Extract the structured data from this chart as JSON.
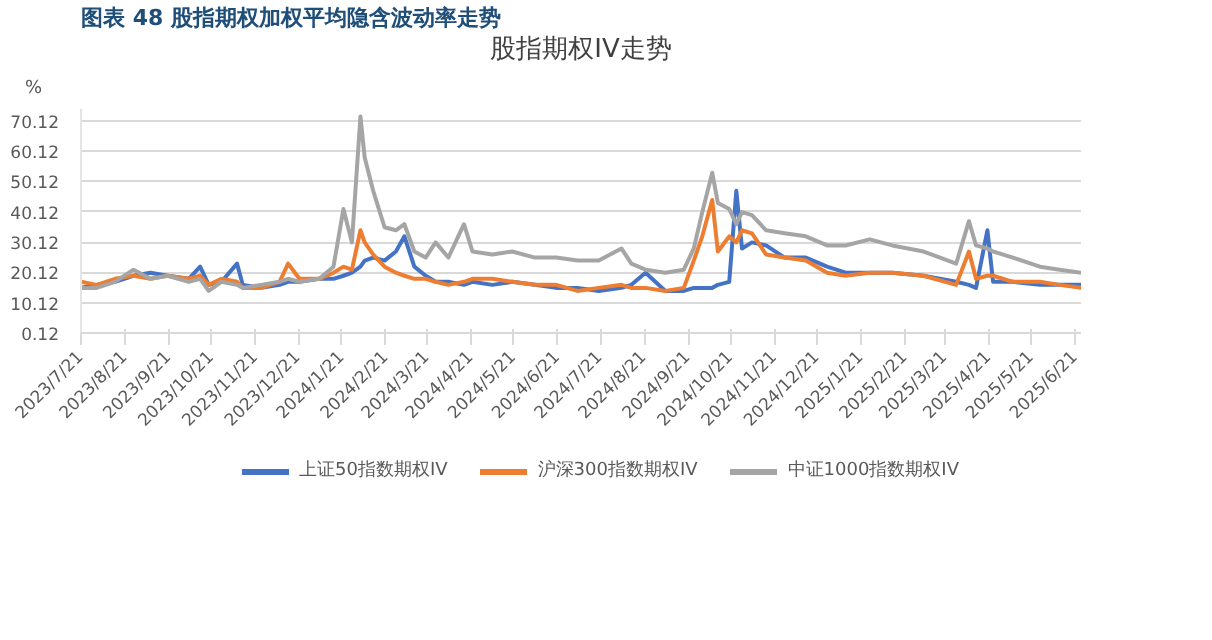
{
  "chart_data": {
    "type": "line",
    "title": "图表 48  股指期权加权平均隐含波动率走势",
    "subtitle": "股指期权IV走势",
    "ylabel": "%",
    "x": [
      "2023-07-21",
      "2023-08-01",
      "2023-08-14",
      "2023-08-27",
      "2023-09-08",
      "2023-09-20",
      "2023-10-05",
      "2023-10-13",
      "2023-10-19",
      "2023-10-28",
      "2023-11-08",
      "2023-11-12",
      "2023-11-25",
      "2023-12-08",
      "2023-12-14",
      "2023-12-22",
      "2024-01-05",
      "2024-01-15",
      "2024-01-22",
      "2024-01-28",
      "2024-02-03",
      "2024-02-06",
      "2024-02-12",
      "2024-02-20",
      "2024-02-28",
      "2024-03-05",
      "2024-03-12",
      "2024-03-20",
      "2024-03-27",
      "2024-04-05",
      "2024-04-16",
      "2024-04-22",
      "2024-05-06",
      "2024-05-20",
      "2024-06-05",
      "2024-06-20",
      "2024-07-05",
      "2024-07-20",
      "2024-08-05",
      "2024-08-12",
      "2024-08-22",
      "2024-09-05",
      "2024-09-18",
      "2024-09-25",
      "2024-10-01",
      "2024-10-08",
      "2024-10-12",
      "2024-10-20",
      "2024-10-25",
      "2024-10-29",
      "2024-11-05",
      "2024-11-15",
      "2024-11-28",
      "2024-12-13",
      "2024-12-28",
      "2025-01-10",
      "2025-01-27",
      "2025-02-12",
      "2025-03-06",
      "2025-03-29",
      "2025-04-07",
      "2025-04-12",
      "2025-04-20",
      "2025-04-24",
      "2025-05-08",
      "2025-05-27",
      "2025-06-10",
      "2025-06-25"
    ],
    "series": [
      {
        "name": "上证50指数期权IV",
        "color": "#4472c4",
        "values": [
          15,
          16,
          17,
          19,
          20,
          19,
          18,
          22,
          16,
          17,
          23,
          16,
          15,
          16,
          17,
          17,
          18,
          18,
          19,
          20,
          22,
          24,
          25,
          24,
          27,
          32,
          22,
          19,
          17,
          17,
          16,
          17,
          16,
          17,
          16,
          15,
          15,
          14,
          15,
          16,
          20,
          14,
          14,
          15,
          15,
          15,
          16,
          17,
          47,
          28,
          30,
          29,
          25,
          25,
          22,
          20,
          20,
          20,
          19,
          17,
          16,
          15,
          34,
          17,
          17,
          16,
          16,
          16
        ]
      },
      {
        "name": "沪深300指数期权IV",
        "color": "#ed7d31",
        "values": [
          17,
          16,
          18,
          19,
          18,
          19,
          18,
          19,
          16,
          18,
          17,
          15,
          15,
          17,
          23,
          18,
          18,
          20,
          22,
          21,
          34,
          30,
          26,
          22,
          20,
          19,
          18,
          18,
          17,
          16,
          17,
          18,
          18,
          17,
          16,
          16,
          14,
          15,
          16,
          15,
          15,
          14,
          15,
          24,
          32,
          44,
          27,
          32,
          30,
          34,
          33,
          26,
          25,
          24,
          20,
          19,
          20,
          20,
          19,
          16,
          27,
          18,
          19,
          19,
          17,
          17,
          16,
          15
        ]
      },
      {
        "name": "中证1000指数期权IV",
        "color": "#a5a5a5",
        "values": [
          15,
          15,
          17,
          21,
          18,
          19,
          17,
          18,
          14,
          17,
          16,
          15,
          16,
          17,
          18,
          17,
          18,
          22,
          41,
          30,
          71.5,
          58,
          47,
          35,
          34,
          36,
          27,
          25,
          30,
          25,
          36,
          27,
          26,
          27,
          25,
          25,
          24,
          24,
          28,
          23,
          21,
          20,
          21,
          28,
          40,
          53,
          43,
          41,
          36,
          40,
          39,
          34,
          33,
          32,
          29,
          29,
          31,
          29,
          27,
          23,
          37,
          29,
          28,
          27,
          25,
          22,
          21,
          20
        ]
      }
    ],
    "xlim": [
      "2023-07-21",
      "2025-06-25"
    ],
    "xticks": [
      {
        "value": "2023-07-21",
        "label": "2023/7/21"
      },
      {
        "value": "2023-08-21",
        "label": "2023/8/21"
      },
      {
        "value": "2023-09-21",
        "label": "2023/9/21"
      },
      {
        "value": "2023-10-21",
        "label": "2023/10/21"
      },
      {
        "value": "2023-11-21",
        "label": "2023/11/21"
      },
      {
        "value": "2023-12-21",
        "label": "2023/12/21"
      },
      {
        "value": "2024-01-21",
        "label": "2024/1/21"
      },
      {
        "value": "2024-02-21",
        "label": "2024/2/21"
      },
      {
        "value": "2024-03-21",
        "label": "2024/3/21"
      },
      {
        "value": "2024-04-21",
        "label": "2024/4/21"
      },
      {
        "value": "2024-05-21",
        "label": "2024/5/21"
      },
      {
        "value": "2024-06-21",
        "label": "2024/6/21"
      },
      {
        "value": "2024-07-21",
        "label": "2024/7/21"
      },
      {
        "value": "2024-08-21",
        "label": "2024/8/21"
      },
      {
        "value": "2024-09-21",
        "label": "2024/9/21"
      },
      {
        "value": "2024-10-21",
        "label": "2024/10/21"
      },
      {
        "value": "2024-11-21",
        "label": "2024/11/21"
      },
      {
        "value": "2024-12-21",
        "label": "2024/12/21"
      },
      {
        "value": "2025-01-21",
        "label": "2025/1/21"
      },
      {
        "value": "2025-02-21",
        "label": "2025/2/21"
      },
      {
        "value": "2025-03-21",
        "label": "2025/3/21"
      },
      {
        "value": "2025-04-21",
        "label": "2025/4/21"
      },
      {
        "value": "2025-05-21",
        "label": "2025/5/21"
      },
      {
        "value": "2025-06-21",
        "label": "2025/6/21"
      }
    ],
    "ylim": [
      0.12,
      74
    ],
    "yticks": [
      {
        "value": 0.12,
        "label": "0.12"
      },
      {
        "value": 10.12,
        "label": "10.12"
      },
      {
        "value": 20.12,
        "label": "20.12"
      },
      {
        "value": 30.12,
        "label": "30.12"
      },
      {
        "value": 40.12,
        "label": "40.12"
      },
      {
        "value": 50.12,
        "label": "50.12"
      },
      {
        "value": 60.12,
        "label": "60.12"
      },
      {
        "value": 70.12,
        "label": "70.12"
      }
    ],
    "grid": "y",
    "legend": "bottom",
    "marker": "none",
    "line_style": "solid"
  }
}
